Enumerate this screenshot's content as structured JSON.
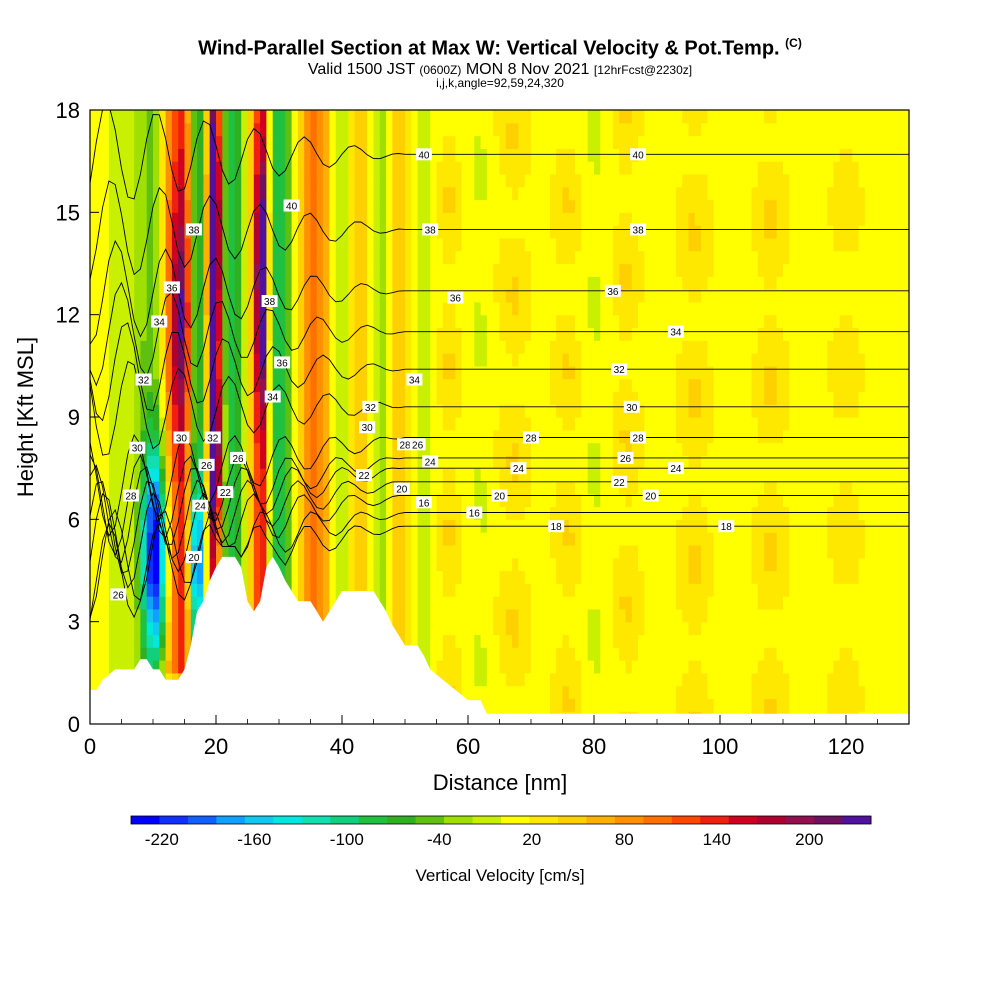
{
  "header": {
    "title": "Wind-Parallel Section at Max W: Vertical Velocity & Pot.Temp.",
    "title_tag": "(C)",
    "valid_prefix": "Valid 1500 JST",
    "valid_z": "(0600Z)",
    "valid_date": "MON 8 Nov 2021",
    "valid_fcst": "[12hrFcst@2230z]",
    "indices": "i,j,k,angle=92,59,24,320"
  },
  "chart_data": {
    "type": "heatmap",
    "xlabel": "Distance [nm]",
    "ylabel": "Height [Kft MSL]",
    "xlim": [
      0,
      130
    ],
    "ylim": [
      0,
      18
    ],
    "x_ticks": [
      0,
      20,
      40,
      60,
      80,
      100,
      120
    ],
    "y_ticks": [
      0,
      3,
      6,
      9,
      12,
      15,
      18
    ],
    "field": "Vertical Velocity",
    "colorbar": {
      "label": "Vertical Velocity [cm/s]",
      "range": [
        -240,
        240
      ],
      "ticks": [
        -220,
        -160,
        -100,
        -40,
        20,
        80,
        140,
        200
      ],
      "colors": [
        "#0000ff",
        "#1030ff",
        "#1060ff",
        "#10a0ff",
        "#10c8f0",
        "#00e8e0",
        "#10e0b0",
        "#10d080",
        "#20c040",
        "#30b020",
        "#60c010",
        "#a0e000",
        "#c8f000",
        "#ffff00",
        "#ffe800",
        "#ffd000",
        "#ffb000",
        "#ff9000",
        "#ff7000",
        "#ff4800",
        "#f02010",
        "#d00020",
        "#b00030",
        "#901050",
        "#701060",
        "#5010a0"
      ]
    },
    "stripes": [
      {
        "x": 4,
        "w": 1.5,
        "v": -20
      },
      {
        "x": 7,
        "w": 2,
        "v": 0
      },
      {
        "x": 10,
        "w": 3,
        "v": -60
      },
      {
        "x": 13,
        "w": 2,
        "v": 110
      },
      {
        "x": 15,
        "w": 1.2,
        "v": 90
      },
      {
        "x": 17,
        "w": 1.5,
        "v": -100
      },
      {
        "x": 19.7,
        "w": 1.2,
        "v": 180
      },
      {
        "x": 22.5,
        "w": 2.5,
        "v": -90
      },
      {
        "x": 25.5,
        "w": 1.5,
        "v": 40
      },
      {
        "x": 27.3,
        "w": 1.2,
        "v": 160
      },
      {
        "x": 30,
        "w": 2.5,
        "v": -100
      },
      {
        "x": 33,
        "w": 1.5,
        "v": 20
      },
      {
        "x": 36,
        "w": 2.5,
        "v": 90
      },
      {
        "x": 39.5,
        "w": 2.5,
        "v": -30
      },
      {
        "x": 43,
        "w": 2,
        "v": 50
      },
      {
        "x": 46,
        "w": 2,
        "v": -40
      },
      {
        "x": 49,
        "w": 1.5,
        "v": 40
      },
      {
        "x": 53,
        "w": 2,
        "v": -20
      },
      {
        "x": 57,
        "w": 2.5,
        "v": 30
      },
      {
        "x": 62,
        "w": 3,
        "v": -15
      },
      {
        "x": 67,
        "w": 3,
        "v": 30
      },
      {
        "x": 72,
        "w": 3,
        "v": 0
      },
      {
        "x": 76,
        "w": 2.5,
        "v": 30
      },
      {
        "x": 80,
        "w": 3,
        "v": -15
      },
      {
        "x": 85,
        "w": 2.5,
        "v": 30
      },
      {
        "x": 90,
        "w": 3,
        "v": 0
      },
      {
        "x": 96,
        "w": 3,
        "v": 30
      },
      {
        "x": 102,
        "w": 3,
        "v": -10
      },
      {
        "x": 108,
        "w": 3,
        "v": 30
      },
      {
        "x": 114,
        "w": 3,
        "v": 0
      },
      {
        "x": 120,
        "w": 3,
        "v": 20
      },
      {
        "x": 126,
        "w": 2.5,
        "v": -5
      }
    ],
    "blobs": [
      {
        "x": 10.5,
        "y": 5.0,
        "rx": 2.0,
        "ry": 3.0,
        "v": -220
      },
      {
        "x": 17,
        "y": 4.8,
        "rx": 1.2,
        "ry": 2.0,
        "v": -120
      },
      {
        "x": 19.8,
        "y": 14,
        "rx": 1.0,
        "ry": 4.0,
        "v": 160
      },
      {
        "x": 27.3,
        "y": 13,
        "rx": 0.9,
        "ry": 3.5,
        "v": 150
      },
      {
        "x": 14.5,
        "y": 12,
        "rx": 1.6,
        "ry": 3.5,
        "v": 90
      },
      {
        "x": 20,
        "y": 8,
        "rx": 1.0,
        "ry": 2.0,
        "v": 130
      }
    ],
    "terrain": [
      [
        0,
        1.0
      ],
      [
        1,
        1.0
      ],
      [
        1,
        1.0
      ],
      [
        2,
        1.3
      ],
      [
        4,
        1.6
      ],
      [
        7,
        1.6
      ],
      [
        8,
        1.9
      ],
      [
        9,
        1.9
      ],
      [
        10,
        1.6
      ],
      [
        11,
        1.6
      ],
      [
        12,
        1.3
      ],
      [
        14,
        1.3
      ],
      [
        15,
        1.6
      ],
      [
        16,
        2.3
      ],
      [
        17,
        3.3
      ],
      [
        18,
        3.6
      ],
      [
        19,
        4.2
      ],
      [
        20,
        4.6
      ],
      [
        21,
        4.9
      ],
      [
        23,
        4.9
      ],
      [
        24,
        4.6
      ],
      [
        25,
        3.6
      ],
      [
        26,
        3.3
      ],
      [
        27,
        3.6
      ],
      [
        28,
        4.6
      ],
      [
        29,
        4.9
      ],
      [
        30,
        4.6
      ],
      [
        31,
        4.2
      ],
      [
        32,
        3.9
      ],
      [
        33,
        3.6
      ],
      [
        35,
        3.6
      ],
      [
        36,
        3.3
      ],
      [
        37,
        3.0
      ],
      [
        38,
        3.3
      ],
      [
        39,
        3.6
      ],
      [
        40,
        3.9
      ],
      [
        45,
        3.9
      ],
      [
        46,
        3.6
      ],
      [
        47,
        3.3
      ],
      [
        48,
        2.9
      ],
      [
        49,
        2.6
      ],
      [
        50,
        2.3
      ],
      [
        52,
        2.3
      ],
      [
        53,
        2.0
      ],
      [
        54,
        1.6
      ],
      [
        56,
        1.3
      ],
      [
        58,
        1.0
      ],
      [
        60,
        0.7
      ],
      [
        62,
        0.7
      ],
      [
        63,
        0.3
      ],
      [
        130,
        0.3
      ]
    ],
    "theta_lines": [
      {
        "theta": 16,
        "y": 6.2,
        "label_x": [
          61
        ]
      },
      {
        "theta": 18,
        "y": 5.8,
        "label_x": [
          74,
          101
        ]
      },
      {
        "theta": 20,
        "y": 6.7,
        "label_x": [
          65,
          89
        ]
      },
      {
        "theta": 22,
        "y": 7.1,
        "label_x": [
          84
        ]
      },
      {
        "theta": 24,
        "y": 7.5,
        "label_x": [
          68,
          93
        ]
      },
      {
        "theta": 26,
        "y": 7.8,
        "label_x": [
          85
        ]
      },
      {
        "theta": 28,
        "y": 8.4,
        "label_x": [
          70,
          87
        ]
      },
      {
        "theta": 30,
        "y": 9.3,
        "label_x": [
          86
        ]
      },
      {
        "theta": 32,
        "y": 10.4,
        "label_x": [
          84
        ]
      },
      {
        "theta": 34,
        "y": 11.5,
        "label_x": [
          93
        ]
      },
      {
        "theta": 36,
        "y": 12.7,
        "label_x": [
          83
        ]
      },
      {
        "theta": 38,
        "y": 14.5,
        "label_x": [
          87
        ]
      },
      {
        "theta": 40,
        "y": 16.7,
        "label_x": [
          87
        ]
      }
    ],
    "contour_labels": [
      {
        "x": 4.5,
        "y": 3.8,
        "t": "26"
      },
      {
        "x": 6.5,
        "y": 6.7,
        "t": "28"
      },
      {
        "x": 7.5,
        "y": 8.1,
        "t": "30"
      },
      {
        "x": 8.5,
        "y": 10.1,
        "t": "32"
      },
      {
        "x": 11,
        "y": 11.8,
        "t": "34"
      },
      {
        "x": 13,
        "y": 12.8,
        "t": "36"
      },
      {
        "x": 16.5,
        "y": 14.5,
        "t": "38"
      },
      {
        "x": 14.5,
        "y": 8.4,
        "t": "30"
      },
      {
        "x": 19.5,
        "y": 8.4,
        "t": "32"
      },
      {
        "x": 18.5,
        "y": 7.6,
        "t": "26"
      },
      {
        "x": 17.5,
        "y": 6.4,
        "t": "24"
      },
      {
        "x": 21.5,
        "y": 6.8,
        "t": "22"
      },
      {
        "x": 16.5,
        "y": 4.9,
        "t": "20"
      },
      {
        "x": 23.5,
        "y": 7.8,
        "t": "26"
      },
      {
        "x": 29,
        "y": 9.6,
        "t": "34"
      },
      {
        "x": 30.5,
        "y": 10.6,
        "t": "36"
      },
      {
        "x": 28.5,
        "y": 12.4,
        "t": "38"
      },
      {
        "x": 32,
        "y": 15.2,
        "t": "40"
      },
      {
        "x": 44.5,
        "y": 9.3,
        "t": "32"
      },
      {
        "x": 44,
        "y": 8.7,
        "t": "30"
      },
      {
        "x": 50,
        "y": 8.2,
        "t": "28"
      },
      {
        "x": 43.5,
        "y": 7.3,
        "t": "22"
      },
      {
        "x": 49.5,
        "y": 6.9,
        "t": "20"
      },
      {
        "x": 53,
        "y": 6.5,
        "t": "16"
      },
      {
        "x": 52,
        "y": 8.2,
        "t": "26"
      },
      {
        "x": 54,
        "y": 7.7,
        "t": "24"
      },
      {
        "x": 51.5,
        "y": 10.1,
        "t": "34"
      },
      {
        "x": 58,
        "y": 12.5,
        "t": "36"
      },
      {
        "x": 54,
        "y": 14.5,
        "t": "38"
      },
      {
        "x": 53,
        "y": 16.7,
        "t": "40"
      }
    ]
  }
}
